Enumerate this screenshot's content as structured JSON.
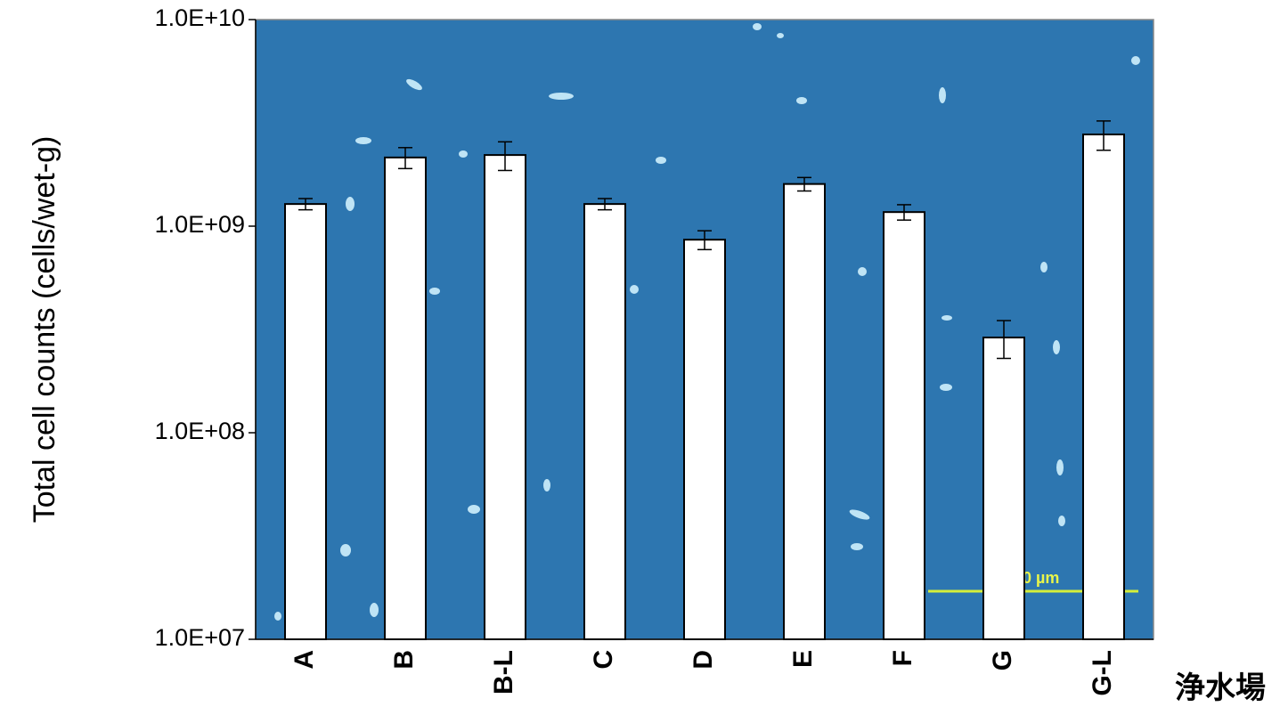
{
  "chart_data": {
    "type": "bar",
    "y_label": "Total cell counts (cells/wet-g)",
    "x_label": "浄水場",
    "annotations": [
      "0 µm"
    ],
    "categories": [
      "A",
      "B",
      "B-L",
      "C",
      "D",
      "E",
      "F",
      "G",
      "G-L"
    ],
    "series": [
      {
        "color": "#ffffff",
        "values": [
          1280000000,
          2150000000,
          2210000000,
          1280000000,
          860000000,
          1600000000,
          1170000000,
          289000000,
          2780000000
        ],
        "errors": [
          80000000,
          250000000,
          350000000,
          80000000,
          90000000,
          120000000,
          100000000,
          60000000,
          450000000
        ]
      }
    ],
    "log_scale": true,
    "ylim": [
      10000000,
      10000000000
    ],
    "yticks": [
      {
        "value": 10000000,
        "label": "1.0E+07"
      },
      {
        "value": 100000000,
        "label": "1.0E+08"
      },
      {
        "value": 1000000000,
        "label": "1.0E+09"
      },
      {
        "value": 10000000000,
        "label": "1.0E+10"
      }
    ]
  }
}
